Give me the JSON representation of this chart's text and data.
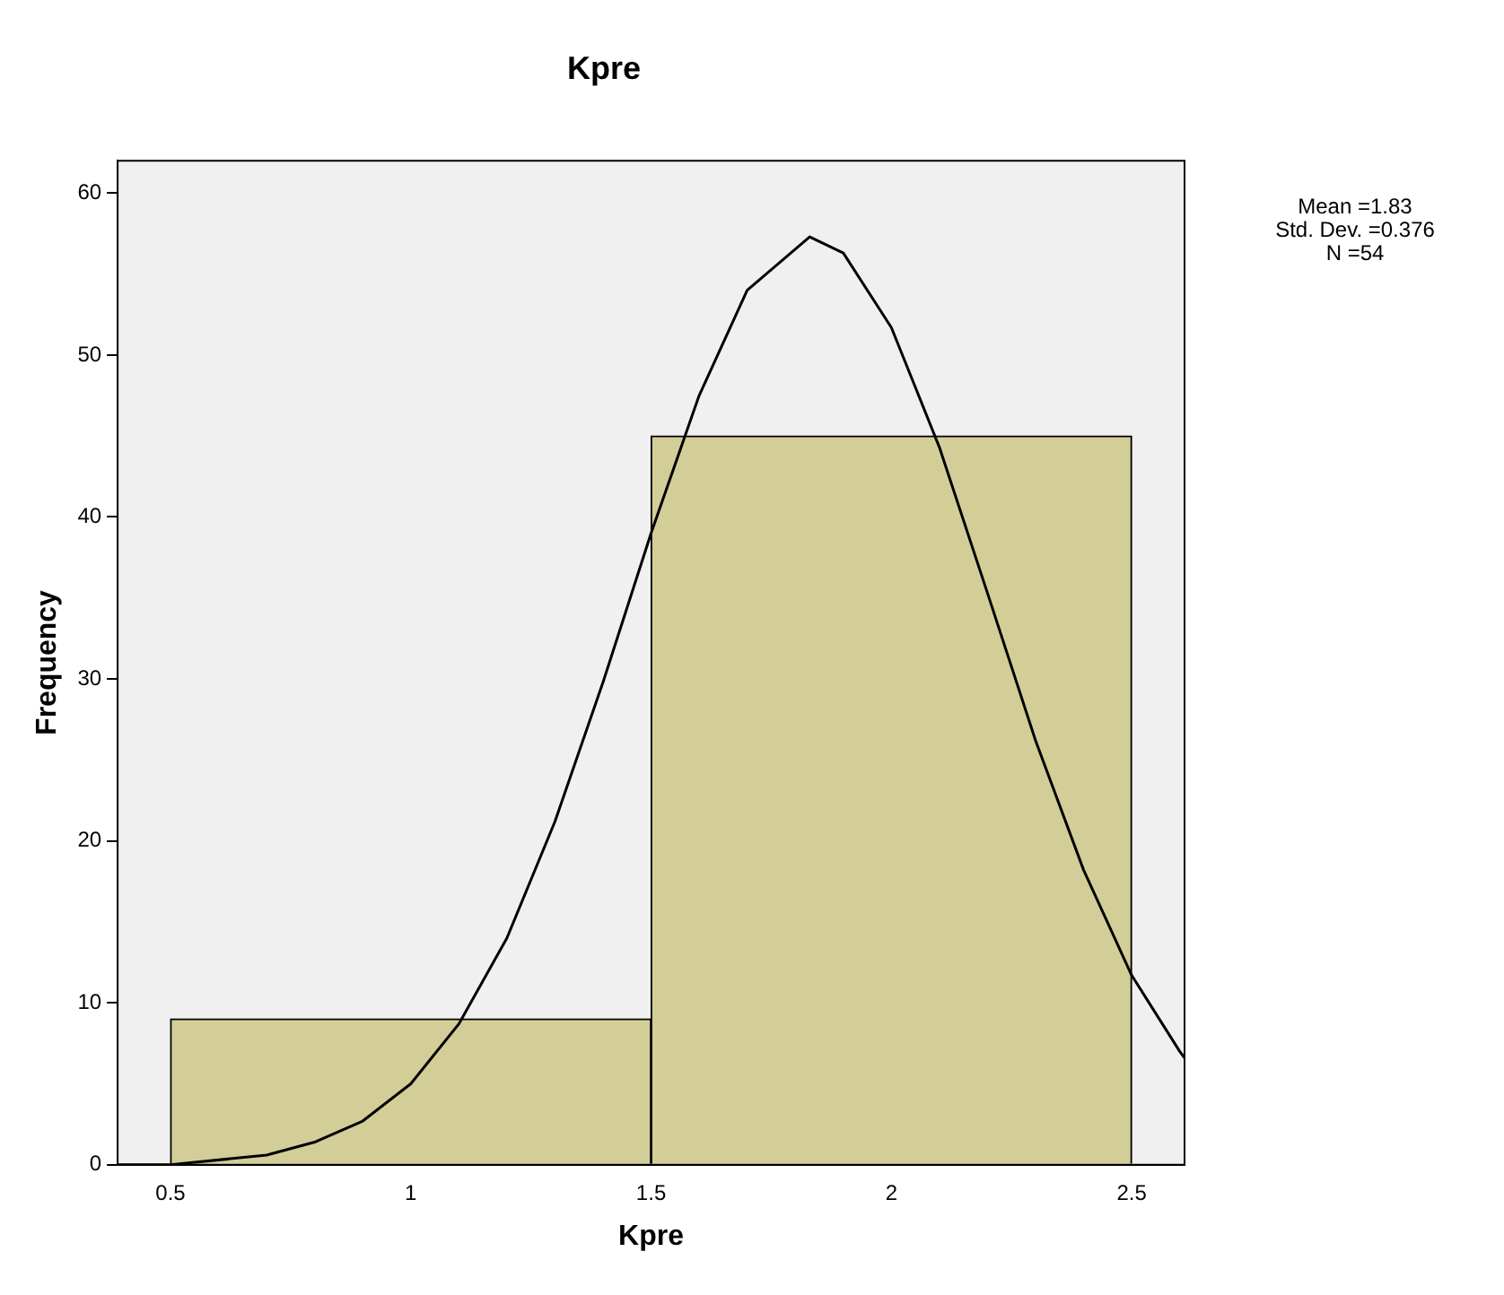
{
  "chart_data": {
    "type": "histogram",
    "title": "Kpre",
    "xlabel": "Kpre",
    "ylabel": "Frequency",
    "bins": [
      0.5,
      1.5,
      2.5
    ],
    "values": [
      9,
      45
    ],
    "color": "#d3ce97",
    "series": [
      {
        "type": "line",
        "color": "#000000",
        "x": [
          0.39,
          0.5,
          0.7,
          0.8,
          0.9,
          1.0,
          1.1,
          1.2,
          1.3,
          1.4,
          1.5,
          1.6,
          1.7,
          1.83,
          1.9,
          2.0,
          2.1,
          2.2,
          2.3,
          2.4,
          2.5,
          2.6,
          2.61
        ],
        "values": [
          0,
          0,
          0.6,
          1.4,
          2.7,
          5,
          8.7,
          14,
          21.2,
          29.8,
          39,
          47.5,
          54,
          57.3,
          56.3,
          51.7,
          44.3,
          35.3,
          26.2,
          18.2,
          11.7,
          7,
          6.6
        ]
      }
    ],
    "xlim": [
      0.39,
      2.61
    ],
    "xticks": [
      0.5,
      1,
      1.5,
      2,
      2.5
    ],
    "ylim": [
      0,
      62
    ],
    "yticks": [
      0,
      10,
      20,
      30,
      40,
      50,
      60
    ],
    "grid": false,
    "legend": false,
    "marker": "none",
    "annotations": [
      "Mean =1.83",
      "Std. Dev. =0.376",
      "N =54"
    ]
  }
}
